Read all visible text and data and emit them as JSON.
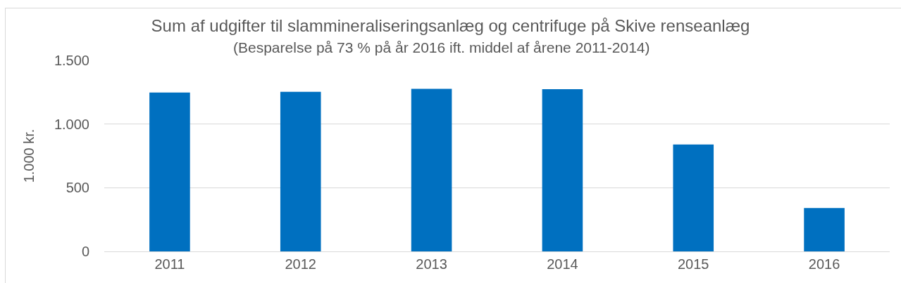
{
  "chart_data": {
    "type": "bar",
    "title": "Sum af udgifter til slammineraliseringsanlæg og centrifuge på Skive renseanlæg",
    "subtitle": "(Besparelse på 73 % på år 2016 ift. middel af årene 2011-2014)",
    "ylabel": "1.000 kr.",
    "categories": [
      "2011",
      "2012",
      "2013",
      "2014",
      "2015",
      "2016"
    ],
    "values": [
      1248,
      1253,
      1276,
      1274,
      839,
      341
    ],
    "color": "#0070c0",
    "ylim": [
      0,
      1500
    ],
    "yticks": [
      0,
      500,
      {
        "value": 1000,
        "label": "1.000"
      },
      {
        "value": 1500,
        "label": "1.500"
      }
    ],
    "grid": "y"
  }
}
